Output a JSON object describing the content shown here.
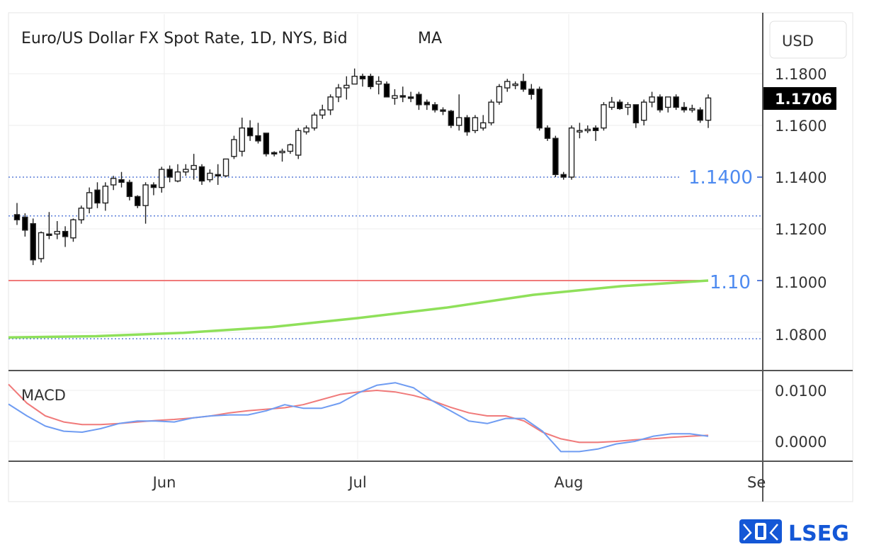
{
  "header": {
    "title": "Euro/US Dollar FX Spot Rate, 1D, NYS, Bid",
    "indicator": "MA"
  },
  "axis": {
    "currency": "USD",
    "last_price": "1.1706",
    "main_ticks": [
      "1.1800",
      "1.1600",
      "1.1400",
      "1.1200",
      "1.1000",
      "1.0800"
    ],
    "macd_ticks": [
      "0.0100",
      "0.0000"
    ],
    "months": [
      "Jun",
      "Jul",
      "Aug",
      "Se"
    ]
  },
  "annotations": {
    "support_label": "1.1400",
    "target_label": "1.10"
  },
  "macd": {
    "label": "MACD"
  },
  "brand": {
    "name": "LSEG"
  },
  "colors": {
    "up_candle": "#ffffff",
    "down_candle": "#000000",
    "red_line": "#f07a7a",
    "ma_line": "#8fe05a",
    "macd_line": "#6f9cf2",
    "signal_line": "#f07a7a",
    "dotted_level": "#5b7fd9",
    "annotation_text": "#4d8af0",
    "brand": "#1457d6"
  },
  "chart_data": [
    {
      "type": "candlestick",
      "title": "Euro/US Dollar FX Spot Rate, 1D, NYS, Bid",
      "ylim": [
        1.0745,
        1.1935
      ],
      "x_ticks": [
        "Jun",
        "Jul",
        "Aug",
        "Se"
      ],
      "grid": true,
      "horizontal_levels": [
        {
          "value": 1.14,
          "style": "dotted",
          "label": "1.1400"
        },
        {
          "value": 1.125,
          "style": "dotted"
        },
        {
          "value": 1.1,
          "style": "solid",
          "color": "red",
          "label": "1.10"
        },
        {
          "value": 1.0775,
          "style": "dotted"
        }
      ],
      "candles": [
        {
          "date": "May-12",
          "o": 1.1255,
          "h": 1.13,
          "l": 1.1215,
          "c": 1.1235
        },
        {
          "date": "May-13",
          "o": 1.1245,
          "h": 1.126,
          "l": 1.117,
          "c": 1.1195
        },
        {
          "date": "May-14",
          "o": 1.122,
          "h": 1.124,
          "l": 1.106,
          "c": 1.108
        },
        {
          "date": "May-15",
          "o": 1.1085,
          "h": 1.119,
          "l": 1.107,
          "c": 1.1185
        },
        {
          "date": "May-16",
          "o": 1.118,
          "h": 1.1265,
          "l": 1.116,
          "c": 1.1175
        },
        {
          "date": "May-19",
          "o": 1.118,
          "h": 1.123,
          "l": 1.116,
          "c": 1.119
        },
        {
          "date": "May-20",
          "o": 1.119,
          "h": 1.121,
          "l": 1.113,
          "c": 1.117
        },
        {
          "date": "May-21",
          "o": 1.1165,
          "h": 1.124,
          "l": 1.115,
          "c": 1.1235
        },
        {
          "date": "May-22",
          "o": 1.1235,
          "h": 1.129,
          "l": 1.122,
          "c": 1.128
        },
        {
          "date": "May-23",
          "o": 1.128,
          "h": 1.136,
          "l": 1.126,
          "c": 1.134
        },
        {
          "date": "May-26",
          "o": 1.135,
          "h": 1.138,
          "l": 1.128,
          "c": 1.13
        },
        {
          "date": "May-27",
          "o": 1.13,
          "h": 1.138,
          "l": 1.127,
          "c": 1.1365
        },
        {
          "date": "May-28",
          "o": 1.137,
          "h": 1.1405,
          "l": 1.135,
          "c": 1.1395
        },
        {
          "date": "May-29",
          "o": 1.139,
          "h": 1.142,
          "l": 1.136,
          "c": 1.138
        },
        {
          "date": "May-30",
          "o": 1.138,
          "h": 1.139,
          "l": 1.131,
          "c": 1.1325
        },
        {
          "date": "Jun-02",
          "o": 1.1325,
          "h": 1.133,
          "l": 1.128,
          "c": 1.129
        },
        {
          "date": "Jun-03",
          "o": 1.129,
          "h": 1.138,
          "l": 1.122,
          "c": 1.137
        },
        {
          "date": "Jun-04",
          "o": 1.137,
          "h": 1.138,
          "l": 1.133,
          "c": 1.136
        },
        {
          "date": "Jun-05",
          "o": 1.136,
          "h": 1.144,
          "l": 1.134,
          "c": 1.143
        },
        {
          "date": "Jun-06",
          "o": 1.143,
          "h": 1.1445,
          "l": 1.138,
          "c": 1.14
        },
        {
          "date": "Jun-09",
          "o": 1.1385,
          "h": 1.145,
          "l": 1.138,
          "c": 1.142
        },
        {
          "date": "Jun-10",
          "o": 1.142,
          "h": 1.145,
          "l": 1.1405,
          "c": 1.143
        },
        {
          "date": "Jun-11",
          "o": 1.143,
          "h": 1.149,
          "l": 1.139,
          "c": 1.1445
        },
        {
          "date": "Jun-12",
          "o": 1.144,
          "h": 1.145,
          "l": 1.137,
          "c": 1.1385
        },
        {
          "date": "Jun-13",
          "o": 1.139,
          "h": 1.143,
          "l": 1.138,
          "c": 1.1415
        },
        {
          "date": "Jun-16",
          "o": 1.141,
          "h": 1.145,
          "l": 1.137,
          "c": 1.1405
        },
        {
          "date": "Jun-17",
          "o": 1.1405,
          "h": 1.147,
          "l": 1.14,
          "c": 1.147
        },
        {
          "date": "Jun-18",
          "o": 1.148,
          "h": 1.156,
          "l": 1.147,
          "c": 1.1545
        },
        {
          "date": "Jun-19",
          "o": 1.15,
          "h": 1.163,
          "l": 1.148,
          "c": 1.159
        },
        {
          "date": "Jun-20",
          "o": 1.159,
          "h": 1.162,
          "l": 1.154,
          "c": 1.156
        },
        {
          "date": "Jun-23",
          "o": 1.156,
          "h": 1.161,
          "l": 1.153,
          "c": 1.154
        },
        {
          "date": "Jun-24",
          "o": 1.157,
          "h": 1.157,
          "l": 1.148,
          "c": 1.149
        },
        {
          "date": "Jun-25",
          "o": 1.1495,
          "h": 1.15,
          "l": 1.148,
          "c": 1.149
        },
        {
          "date": "Jun-26",
          "o": 1.1495,
          "h": 1.151,
          "l": 1.146,
          "c": 1.15
        },
        {
          "date": "Jun-27",
          "o": 1.15,
          "h": 1.153,
          "l": 1.149,
          "c": 1.1525
        },
        {
          "date": "Jun-30",
          "o": 1.1485,
          "h": 1.159,
          "l": 1.147,
          "c": 1.158
        },
        {
          "date": "Jul-01",
          "o": 1.1575,
          "h": 1.16,
          "l": 1.1565,
          "c": 1.159
        },
        {
          "date": "Jul-02",
          "o": 1.159,
          "h": 1.165,
          "l": 1.158,
          "c": 1.164
        },
        {
          "date": "Jul-03",
          "o": 1.164,
          "h": 1.168,
          "l": 1.1625,
          "c": 1.166
        },
        {
          "date": "Jul-04",
          "o": 1.166,
          "h": 1.172,
          "l": 1.164,
          "c": 1.171
        },
        {
          "date": "Jul-07",
          "o": 1.171,
          "h": 1.176,
          "l": 1.169,
          "c": 1.1745
        },
        {
          "date": "Jul-08",
          "o": 1.1745,
          "h": 1.179,
          "l": 1.17,
          "c": 1.1755
        },
        {
          "date": "Jul-09",
          "o": 1.176,
          "h": 1.182,
          "l": 1.176,
          "c": 1.179
        },
        {
          "date": "Jul-10",
          "o": 1.179,
          "h": 1.18,
          "l": 1.175,
          "c": 1.178
        },
        {
          "date": "Jul-11",
          "o": 1.179,
          "h": 1.18,
          "l": 1.174,
          "c": 1.175
        },
        {
          "date": "Jul-14",
          "o": 1.176,
          "h": 1.179,
          "l": 1.172,
          "c": 1.177
        },
        {
          "date": "Jul-15",
          "o": 1.176,
          "h": 1.177,
          "l": 1.171,
          "c": 1.171
        },
        {
          "date": "Jul-16",
          "o": 1.1705,
          "h": 1.174,
          "l": 1.168,
          "c": 1.1715
        },
        {
          "date": "Jul-17",
          "o": 1.1715,
          "h": 1.175,
          "l": 1.169,
          "c": 1.171
        },
        {
          "date": "Jul-18",
          "o": 1.171,
          "h": 1.173,
          "l": 1.169,
          "c": 1.1705
        },
        {
          "date": "Jul-21",
          "o": 1.172,
          "h": 1.173,
          "l": 1.166,
          "c": 1.168
        },
        {
          "date": "Jul-22",
          "o": 1.169,
          "h": 1.17,
          "l": 1.166,
          "c": 1.168
        },
        {
          "date": "Jul-23",
          "o": 1.168,
          "h": 1.169,
          "l": 1.165,
          "c": 1.166
        },
        {
          "date": "Jul-24",
          "o": 1.166,
          "h": 1.167,
          "l": 1.164,
          "c": 1.1655
        },
        {
          "date": "Jul-25",
          "o": 1.1655,
          "h": 1.166,
          "l": 1.159,
          "c": 1.16
        },
        {
          "date": "Jul-28",
          "o": 1.16,
          "h": 1.172,
          "l": 1.158,
          "c": 1.163
        },
        {
          "date": "Jul-29",
          "o": 1.163,
          "h": 1.164,
          "l": 1.156,
          "c": 1.1575
        },
        {
          "date": "Jul-30",
          "o": 1.158,
          "h": 1.164,
          "l": 1.157,
          "c": 1.163
        },
        {
          "date": "Jul-31",
          "o": 1.159,
          "h": 1.164,
          "l": 1.158,
          "c": 1.161
        },
        {
          "date": "Aug-01",
          "o": 1.161,
          "h": 1.17,
          "l": 1.16,
          "c": 1.169
        },
        {
          "date": "Aug-04",
          "o": 1.169,
          "h": 1.176,
          "l": 1.168,
          "c": 1.175
        },
        {
          "date": "Aug-05",
          "o": 1.1745,
          "h": 1.178,
          "l": 1.173,
          "c": 1.177
        },
        {
          "date": "Aug-06",
          "o": 1.176,
          "h": 1.177,
          "l": 1.174,
          "c": 1.176
        },
        {
          "date": "Aug-07",
          "o": 1.177,
          "h": 1.18,
          "l": 1.173,
          "c": 1.174
        },
        {
          "date": "Aug-08",
          "o": 1.174,
          "h": 1.176,
          "l": 1.17,
          "c": 1.172
        },
        {
          "date": "Aug-11",
          "o": 1.174,
          "h": 1.175,
          "l": 1.158,
          "c": 1.159
        },
        {
          "date": "Aug-12",
          "o": 1.159,
          "h": 1.16,
          "l": 1.154,
          "c": 1.155
        },
        {
          "date": "Aug-13",
          "o": 1.155,
          "h": 1.156,
          "l": 1.14,
          "c": 1.141
        },
        {
          "date": "Aug-14",
          "o": 1.141,
          "h": 1.142,
          "l": 1.139,
          "c": 1.14
        },
        {
          "date": "Aug-15",
          "o": 1.14,
          "h": 1.16,
          "l": 1.139,
          "c": 1.159
        },
        {
          "date": "Aug-18",
          "o": 1.158,
          "h": 1.161,
          "l": 1.155,
          "c": 1.158
        },
        {
          "date": "Aug-19",
          "o": 1.158,
          "h": 1.16,
          "l": 1.157,
          "c": 1.1585
        },
        {
          "date": "Aug-20",
          "o": 1.159,
          "h": 1.16,
          "l": 1.154,
          "c": 1.158
        },
        {
          "date": "Aug-21",
          "o": 1.159,
          "h": 1.169,
          "l": 1.158,
          "c": 1.168
        },
        {
          "date": "Aug-22",
          "o": 1.167,
          "h": 1.171,
          "l": 1.166,
          "c": 1.169
        },
        {
          "date": "Aug-25",
          "o": 1.169,
          "h": 1.17,
          "l": 1.166,
          "c": 1.1665
        },
        {
          "date": "Aug-26",
          "o": 1.167,
          "h": 1.169,
          "l": 1.164,
          "c": 1.168
        },
        {
          "date": "Aug-27",
          "o": 1.168,
          "h": 1.168,
          "l": 1.159,
          "c": 1.161
        },
        {
          "date": "Aug-28",
          "o": 1.162,
          "h": 1.17,
          "l": 1.16,
          "c": 1.169
        },
        {
          "date": "Aug-29",
          "o": 1.169,
          "h": 1.173,
          "l": 1.167,
          "c": 1.171
        },
        {
          "date": "Sep-01",
          "o": 1.171,
          "h": 1.172,
          "l": 1.165,
          "c": 1.166
        },
        {
          "date": "Sep-02",
          "o": 1.167,
          "h": 1.171,
          "l": 1.165,
          "c": 1.171
        },
        {
          "date": "Sep-03",
          "o": 1.171,
          "h": 1.172,
          "l": 1.166,
          "c": 1.167
        },
        {
          "date": "Sep-04",
          "o": 1.167,
          "h": 1.169,
          "l": 1.165,
          "c": 1.166
        },
        {
          "date": "Sep-05",
          "o": 1.166,
          "h": 1.168,
          "l": 1.165,
          "c": 1.1665
        },
        {
          "date": "Sep-08",
          "o": 1.166,
          "h": 1.167,
          "l": 1.161,
          "c": 1.162
        },
        {
          "date": "Sep-09",
          "o": 1.162,
          "h": 1.172,
          "l": 1.159,
          "c": 1.1706
        }
      ],
      "moving_average": {
        "name": "MA",
        "values": [
          1.078,
          1.0785,
          1.0798,
          1.082,
          1.0855,
          1.0895,
          1.0945,
          1.0978,
          1.1
        ]
      }
    },
    {
      "type": "line",
      "title": "MACD",
      "ylim": [
        -0.0035,
        0.0135
      ],
      "series": [
        {
          "values": [
            0.0073,
            0.005,
            0.003,
            0.002,
            0.0018,
            0.0025,
            0.0035,
            0.004,
            0.004,
            0.0038,
            0.0046,
            0.005,
            0.0052,
            0.0052,
            0.006,
            0.0072,
            0.0065,
            0.0065,
            0.0075,
            0.0095,
            0.011,
            0.0115,
            0.0105,
            0.008,
            0.006,
            0.004,
            0.0035,
            0.0045,
            0.0045,
            0.002,
            -0.002,
            -0.002,
            -0.0015,
            -0.0005,
            0.0,
            0.001,
            0.0015,
            0.0015,
            0.001
          ]
        },
        {
          "values": [
            0.0112,
            0.0075,
            0.005,
            0.0038,
            0.0033,
            0.0033,
            0.0035,
            0.0038,
            0.0041,
            0.0043,
            0.0046,
            0.005,
            0.0056,
            0.006,
            0.0063,
            0.0066,
            0.0072,
            0.0082,
            0.0092,
            0.0097,
            0.01,
            0.0097,
            0.009,
            0.008,
            0.0067,
            0.0056,
            0.005,
            0.005,
            0.004,
            0.0018,
            0.0005,
            -0.0002,
            -0.0002,
            0.0,
            0.0003,
            0.0005,
            0.0008,
            0.001,
            0.0012
          ]
        }
      ]
    }
  ]
}
